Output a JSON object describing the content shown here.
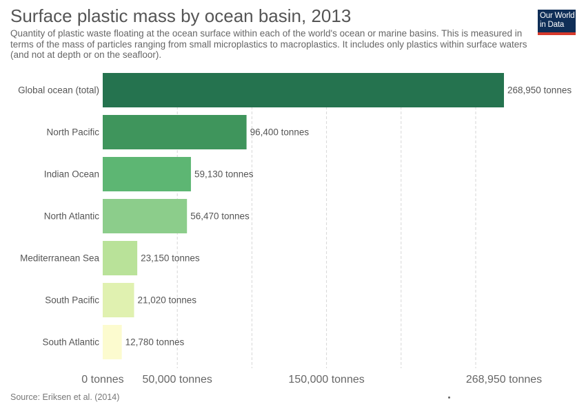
{
  "header": {
    "title": "Surface plastic mass by ocean basin, 2013",
    "subtitle": "Quantity of plastic waste floating at the ocean surface within each of the world's ocean or marine basins. This is measured in terms of the mass of particles ranging from small microplastics to macroplastics. It includes only plastics within surface waters (and not at depth or on the seafloor)."
  },
  "logo": {
    "line1": "Our World",
    "line2": "in Data"
  },
  "footer": {
    "source": "Source: Eriksen et al. (2014)"
  },
  "chart_data": {
    "type": "bar",
    "orientation": "horizontal",
    "categories": [
      "Global ocean (total)",
      "North Pacific",
      "Indian Ocean",
      "North Atlantic",
      "Mediterranean Sea",
      "South Pacific",
      "South Atlantic"
    ],
    "values": [
      268950,
      96400,
      59130,
      56470,
      23150,
      21020,
      12780
    ],
    "value_labels": [
      "268,950 tonnes",
      "96,400 tonnes",
      "59,130 tonnes",
      "56,470 tonnes",
      "23,150 tonnes",
      "21,020 tonnes",
      "12,780 tonnes"
    ],
    "colors": [
      "#25734f",
      "#3f955c",
      "#5db673",
      "#8ccd8b",
      "#b9e299",
      "#e0f1b0",
      "#fcfbcf"
    ],
    "xlim": [
      0,
      268950
    ],
    "xticks": [
      0,
      50000,
      150000,
      268950
    ],
    "xtick_labels": [
      "0 tonnes",
      "50,000 tonnes",
      "150,000 tonnes",
      "268,950 tonnes"
    ],
    "gridlines": [
      50000,
      100000,
      150000,
      200000,
      250000
    ],
    "grid": true
  }
}
